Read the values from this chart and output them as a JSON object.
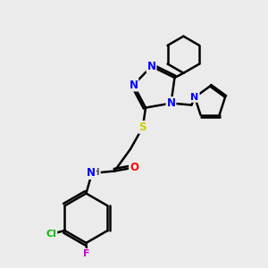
{
  "background_color": "#ebebeb",
  "atom_colors": {
    "N": "#0000ff",
    "O": "#ff0000",
    "S": "#cccc00",
    "Cl": "#00bb00",
    "F": "#cc00cc",
    "C": "#000000",
    "H": "#555555"
  },
  "bond_color": "#000000",
  "bond_width": 1.8,
  "bg": "#ebebeb"
}
